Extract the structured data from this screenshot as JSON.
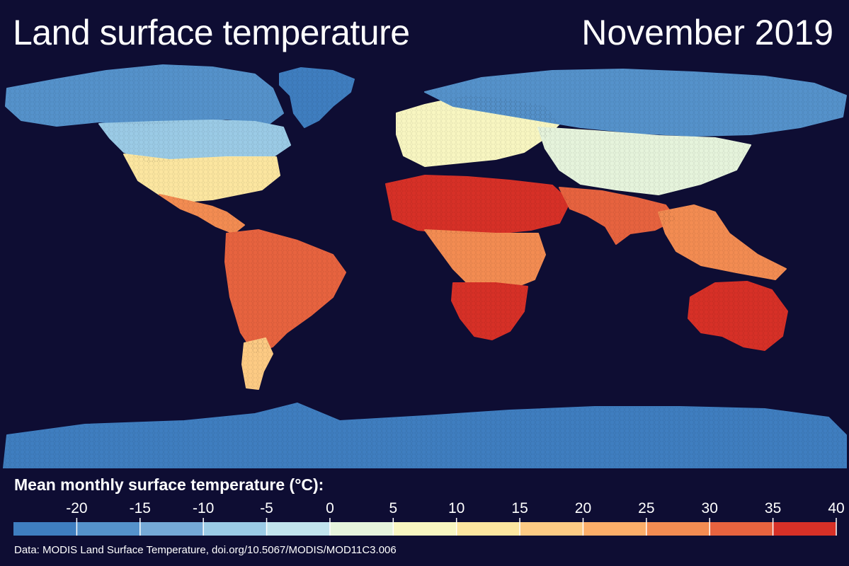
{
  "header": {
    "title": "Land surface temperature",
    "period": "November 2019"
  },
  "legend": {
    "title": "Mean monthly surface temperature (°C):",
    "ticks": [
      "-20",
      "-15",
      "-10",
      "-5",
      "0",
      "5",
      "10",
      "15",
      "20",
      "25",
      "30",
      "35",
      "40"
    ],
    "colors": [
      "#3f7ec0",
      "#5592cb",
      "#75a9d7",
      "#9bcbe6",
      "#c2e4ee",
      "#e6f4dc",
      "#f8f6c1",
      "#fce6a0",
      "#fdcb84",
      "#fcae69",
      "#f38c52",
      "#e7633f",
      "#d73027"
    ]
  },
  "source": "Data: MODIS Land Surface Temperature, doi.org/10.5067/MODIS/MOD11C3.006",
  "map": {
    "ocean_color": "#0e0d33",
    "regions": [
      {
        "name": "greenland",
        "temp": -24
      },
      {
        "name": "north-america-arctic",
        "temp": -18
      },
      {
        "name": "canada",
        "temp": -8
      },
      {
        "name": "united-states",
        "temp": 12
      },
      {
        "name": "mexico-central-america",
        "temp": 25
      },
      {
        "name": "south-america",
        "temp": 30
      },
      {
        "name": "patagonia",
        "temp": 18
      },
      {
        "name": "europe",
        "temp": 8
      },
      {
        "name": "siberia",
        "temp": -20
      },
      {
        "name": "central-asia",
        "temp": 0
      },
      {
        "name": "sahara",
        "temp": 38
      },
      {
        "name": "central-africa",
        "temp": 28
      },
      {
        "name": "southern-africa",
        "temp": 36
      },
      {
        "name": "arabia-india",
        "temp": 30
      },
      {
        "name": "southeast-asia",
        "temp": 27
      },
      {
        "name": "australia",
        "temp": 40
      },
      {
        "name": "antarctica",
        "temp": -22
      }
    ]
  }
}
